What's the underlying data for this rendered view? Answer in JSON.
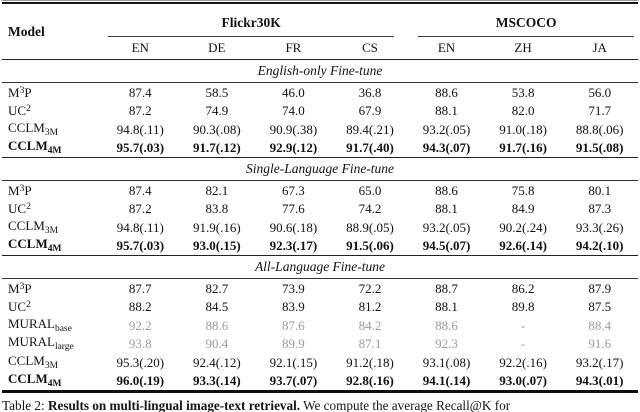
{
  "table": {
    "model_header": "Model",
    "groups": [
      {
        "label": "Flickr30K",
        "cols": [
          "EN",
          "DE",
          "FR",
          "CS"
        ]
      },
      {
        "label": "MSCOCO",
        "cols": [
          "EN",
          "ZH",
          "JA"
        ]
      }
    ],
    "sections": [
      {
        "title": "English-only Fine-tune",
        "rows": [
          {
            "model": [
              [
                "M"
              ],
              [
                "3",
                "sup"
              ],
              [
                "P"
              ]
            ],
            "values": [
              "87.4",
              "58.5",
              "46.0",
              "36.8",
              "88.6",
              "53.8",
              "56.0"
            ]
          },
          {
            "model": [
              [
                "UC"
              ],
              [
                "2",
                "sup"
              ]
            ],
            "values": [
              "87.2",
              "74.9",
              "74.0",
              "67.9",
              "88.1",
              "82.0",
              "71.7"
            ]
          },
          {
            "model": [
              [
                "CCLM"
              ],
              [
                "3M",
                "sub"
              ]
            ],
            "values": [
              "94.8(.11)",
              "90.3(.08)",
              "90.9(.38)",
              "89.4(.21)",
              "93.2(.05)",
              "91.0(.18)",
              "88.8(.06)"
            ]
          },
          {
            "model": [
              [
                "CCLM"
              ],
              [
                "4M",
                "sub"
              ]
            ],
            "bold": true,
            "values": [
              "95.7(.03)",
              "91.7(.12)",
              "92.9(.12)",
              "91.7(.40)",
              "94.3(.07)",
              "91.7(.16)",
              "91.5(.08)"
            ]
          }
        ]
      },
      {
        "title": "Single-Language Fine-tune",
        "rows": [
          {
            "model": [
              [
                "M"
              ],
              [
                "3",
                "sup"
              ],
              [
                "P"
              ]
            ],
            "values": [
              "87.4",
              "82.1",
              "67.3",
              "65.0",
              "88.6",
              "75.8",
              "80.1"
            ]
          },
          {
            "model": [
              [
                "UC"
              ],
              [
                "2",
                "sup"
              ]
            ],
            "values": [
              "87.2",
              "83.8",
              "77.6",
              "74.2",
              "88.1",
              "84.9",
              "87.3"
            ]
          },
          {
            "model": [
              [
                "CCLM"
              ],
              [
                "3M",
                "sub"
              ]
            ],
            "values": [
              "94.8(.11)",
              "91.9(.16)",
              "90.6(.18)",
              "88.9(.05)",
              "93.2(.05)",
              "90.2(.24)",
              "93.3(.26)"
            ]
          },
          {
            "model": [
              [
                "CCLM"
              ],
              [
                "4M",
                "sub"
              ]
            ],
            "bold": true,
            "values": [
              "95.7(.03)",
              "93.0(.15)",
              "92.3(.17)",
              "91.5(.06)",
              "94.5(.07)",
              "92.6(.14)",
              "94.2(.10)"
            ]
          }
        ]
      },
      {
        "title": "All-Language Fine-tune",
        "rows": [
          {
            "model": [
              [
                "M"
              ],
              [
                "3",
                "sup"
              ],
              [
                "P"
              ]
            ],
            "values": [
              "87.7",
              "82.7",
              "73.9",
              "72.2",
              "88.7",
              "86.2",
              "87.9"
            ]
          },
          {
            "model": [
              [
                "UC"
              ],
              [
                "2",
                "sup"
              ]
            ],
            "values": [
              "88.2",
              "84.5",
              "83.9",
              "81.2",
              "88.1",
              "89.8",
              "87.5"
            ]
          },
          {
            "model": [
              [
                "MURAL"
              ],
              [
                "base",
                "sub"
              ]
            ],
            "grey": true,
            "values": [
              "92.2",
              "88.6",
              "87.6",
              "84.2",
              "88.6",
              "-",
              "88.4"
            ]
          },
          {
            "model": [
              [
                "MURAL"
              ],
              [
                "large",
                "sub"
              ]
            ],
            "grey": true,
            "values": [
              "93.8",
              "90.4",
              "89.9",
              "87.1",
              "92.3",
              "-",
              "91.6"
            ]
          },
          {
            "model": [
              [
                "CCLM"
              ],
              [
                "3M",
                "sub"
              ]
            ],
            "values": [
              "95.3(.20)",
              "92.4(.12)",
              "92.1(.15)",
              "91.2(.18)",
              "93.1(.08)",
              "92.2(.16)",
              "93.2(.17)"
            ]
          },
          {
            "model": [
              [
                "CCLM"
              ],
              [
                "4M",
                "sub"
              ]
            ],
            "bold": true,
            "values": [
              "96.0(.19)",
              "93.3(.14)",
              "93.7(.07)",
              "92.8(.16)",
              "94.1(.14)",
              "93.0(.07)",
              "94.3(.01)"
            ]
          }
        ]
      }
    ]
  },
  "caption": {
    "prefix": "Table 2: ",
    "bold_part": "Results on multi-lingual image-text retrieval.",
    "rest": " We compute the average Recall@K for"
  },
  "colors": {
    "muted_value": "#9a9a9a",
    "text": "#111111"
  }
}
